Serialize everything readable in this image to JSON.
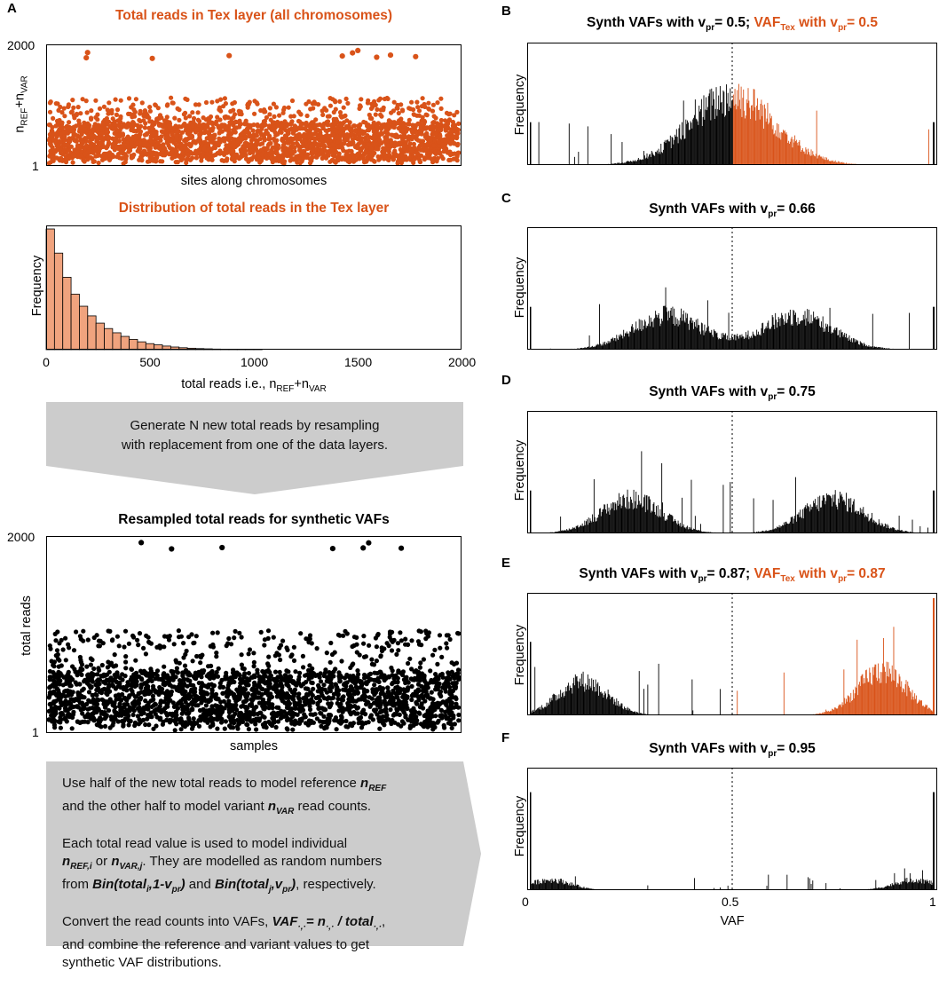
{
  "panel_letters": [
    "A",
    "B",
    "C",
    "D",
    "E",
    "F"
  ],
  "colors": {
    "orange": "#d95319",
    "orange_bar": "#f0a37e",
    "black": "#000000",
    "box": "#cccccc"
  },
  "chart_data": [
    {
      "id": "A1",
      "type": "scatter",
      "title": "Total reads in Tex layer (all chromosomes)",
      "xlabel": "sites along chromosomes",
      "ylabel": "n_REF+n_VAR",
      "yticks": [
        "2000",
        "1"
      ],
      "ylim": [
        1,
        2000
      ],
      "yscale": "log",
      "series_color": "#d95319",
      "highlighted_points": [
        1900,
        1660,
        1620,
        1400,
        1350,
        1320,
        1260,
        1210,
        1170,
        1120
      ]
    },
    {
      "id": "A2",
      "type": "bar",
      "title": "Distribution of total reads in the Tex layer",
      "xlabel": "total reads i.e., n_REF+n_VAR",
      "ylabel": "Frequency",
      "xticks": [
        "0",
        "500",
        "1000",
        "1500",
        "2000"
      ],
      "xlim": [
        0,
        2000
      ],
      "bin_width": 40,
      "relative_frequencies": [
        1.0,
        0.8,
        0.6,
        0.46,
        0.36,
        0.28,
        0.22,
        0.175,
        0.14,
        0.11,
        0.085,
        0.065,
        0.05,
        0.04,
        0.03,
        0.022,
        0.016,
        0.012,
        0.009,
        0.007,
        0.005,
        0.004,
        0.003,
        0.002,
        0.002,
        0.001
      ]
    },
    {
      "id": "A3",
      "type": "scatter",
      "title": "Resampled total reads for synthetic VAFs",
      "xlabel": "samples",
      "ylabel": "total reads",
      "yticks": [
        "2000",
        "1"
      ],
      "ylim": [
        1,
        2000
      ],
      "yscale": "log",
      "series_color": "#000000",
      "highlighted_points": [
        1900,
        1880,
        1560,
        1540,
        1520,
        1500,
        1480
      ]
    },
    {
      "id": "B",
      "type": "bar",
      "title_parts": [
        "Synth VAFs with v",
        "pr",
        "= 0.5; ",
        "VAF",
        "Tex",
        " with v",
        "pr",
        "= 0.5"
      ],
      "ylabel": "Frequency",
      "v_pr": 0.5,
      "has_tex_overlay": true
    },
    {
      "id": "C",
      "type": "bar",
      "title_parts": [
        "Synth VAFs with v",
        "pr",
        "= 0.66"
      ],
      "ylabel": "Frequency",
      "v_pr": 0.66,
      "has_tex_overlay": false
    },
    {
      "id": "D",
      "type": "bar",
      "title_parts": [
        "Synth VAFs with v",
        "pr",
        "= 0.75"
      ],
      "ylabel": "Frequency",
      "v_pr": 0.75,
      "has_tex_overlay": false
    },
    {
      "id": "E",
      "type": "bar",
      "title_parts": [
        "Synth VAFs with v",
        "pr",
        "= 0.87; ",
        "VAF",
        "Tex",
        " with v",
        "pr",
        "= 0.87"
      ],
      "ylabel": "Frequency",
      "v_pr": 0.87,
      "has_tex_overlay": true
    },
    {
      "id": "F",
      "type": "bar",
      "title_parts": [
        "Synth VAFs with v",
        "pr",
        "= 0.95"
      ],
      "ylabel": "Frequency",
      "v_pr": 0.95,
      "has_tex_overlay": false,
      "xlabel": "VAF",
      "xticks": [
        "0",
        "0.5",
        "1"
      ],
      "xlim": [
        0,
        1
      ]
    }
  ],
  "arrow_box_1": {
    "line1": "Generate N new total reads by resampling",
    "line2": "with replacement from one of the data layers."
  },
  "arrow_box_2": {
    "p1_a": "Use half of the new total reads to model reference ",
    "p1_b": "n",
    "p1_c": "REF",
    "p1_d": "and the other half to model variant ",
    "p1_e": "n",
    "p1_f": "VAR",
    "p1_g": " read counts.",
    "p2_a": "Each total read value is used to model individual",
    "p2_b": "n",
    "p2_c": "REF,i",
    "p2_d": " or ",
    "p2_e": "n",
    "p2_f": "VAR,j",
    "p2_g": ". They are modelled as random numbers",
    "p2_h": "from ",
    "p2_i": "Bin(total",
    "p2_j": "i",
    "p2_k": ",1-v",
    "p2_l": "pr",
    "p2_m": ")",
    "p2_n": " and ",
    "p2_o": "Bin(total",
    "p2_p": "j",
    "p2_q": ",v",
    "p2_r": "pr",
    "p2_s": ")",
    "p2_t": ", respectively.",
    "p3_a": "Convert the read counts into VAFs, ",
    "p3_b": "VAF",
    "p3_c": "·,·",
    "p3_d": "= n",
    "p3_e": "·,·",
    "p3_f": " / total",
    "p3_g": "·,·",
    "p3_h": ",",
    "p3_i": "and combine the reference and variant values to get",
    "p3_j": "synthetic VAF distributions."
  },
  "sub_labels": {
    "ref": "REF",
    "var": "VAR"
  }
}
